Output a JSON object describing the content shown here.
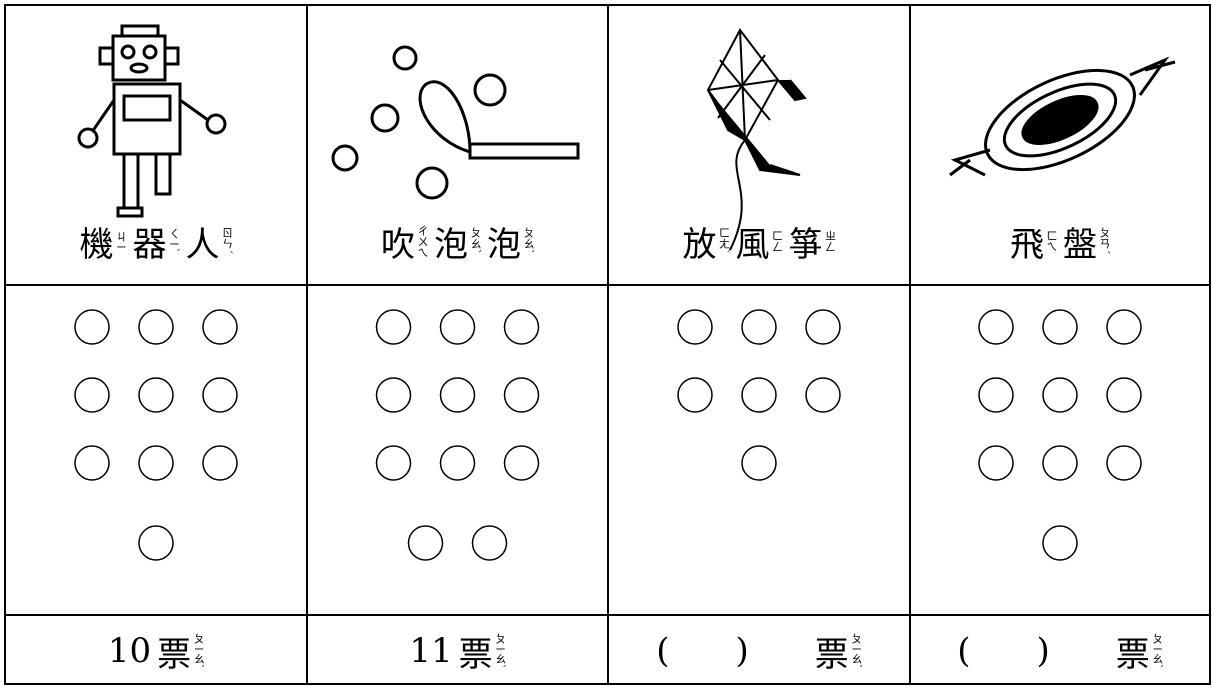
{
  "columns": [
    {
      "label": [
        {
          "char": "機",
          "zhuyin": "ㄐㄧ"
        },
        {
          "char": "器",
          "zhuyin": "ㄑㄧˋ"
        },
        {
          "char": "人",
          "zhuyin": "ㄖㄣˊ"
        }
      ],
      "circles": 10,
      "footer": {
        "count": "10",
        "unit": "票",
        "zhuyin": "ㄆㄧㄠˋ"
      }
    },
    {
      "label": [
        {
          "char": "吹",
          "zhuyin": "ㄔㄨㄟ"
        },
        {
          "char": "泡",
          "zhuyin": "ㄆㄠˋ"
        },
        {
          "char": "泡",
          "zhuyin": "ㄆㄠˋ"
        }
      ],
      "circles": 11,
      "footer": {
        "count": "11",
        "unit": "票",
        "zhuyin": "ㄆㄧㄠˋ"
      }
    },
    {
      "label": [
        {
          "char": "放",
          "zhuyin": "ㄈㄤˋ"
        },
        {
          "char": "風",
          "zhuyin": "ㄈㄥ"
        },
        {
          "char": "箏",
          "zhuyin": "ㄓㄥ"
        }
      ],
      "circles": 7,
      "footer": {
        "open": "(",
        "close": ")",
        "unit": "票",
        "zhuyin": "ㄆㄧㄠˋ"
      }
    },
    {
      "label": [
        {
          "char": "飛",
          "zhuyin": "ㄈㄟ"
        },
        {
          "char": "盤",
          "zhuyin": "ㄆㄢˊ"
        }
      ],
      "circles": 10,
      "footer": {
        "open": "(",
        "close": ")",
        "unit": "票",
        "zhuyin": "ㄆㄧㄠˋ"
      }
    }
  ]
}
